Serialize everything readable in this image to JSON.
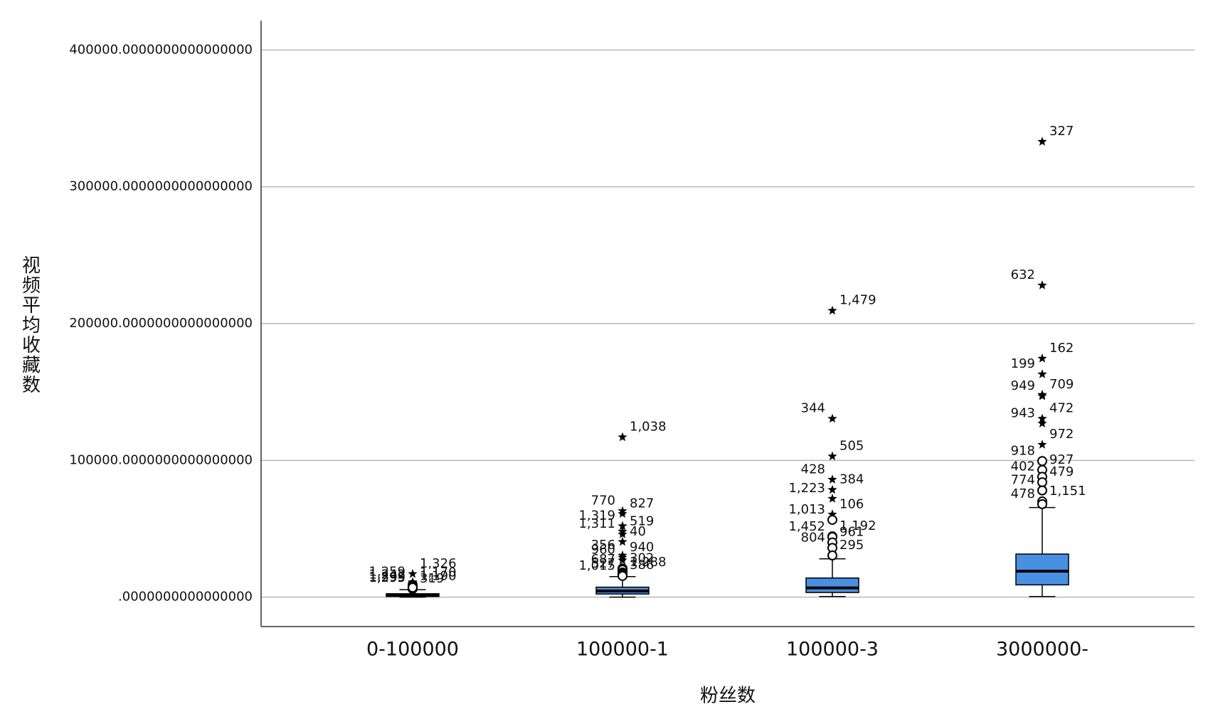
{
  "chart_data": {
    "type": "box",
    "y_label": "视频平均收藏数",
    "x_label": "粉丝数",
    "categories": [
      "0-100000",
      "100000-1",
      "100000-3",
      "3000000-"
    ],
    "color": "#4a90e2",
    "grid": true,
    "ylim": [
      -21500,
      421500
    ],
    "yticks": [
      {
        "value": 0,
        "label": ".0000000000000000"
      },
      {
        "value": 100000,
        "label": "100000.0000000000000000"
      },
      {
        "value": 200000,
        "label": "200000.0000000000000000"
      },
      {
        "value": 300000,
        "label": "300000.0000000000000000"
      },
      {
        "value": 400000,
        "label": "400000.0000000000000000"
      }
    ],
    "boxes": [
      {
        "whisker_low": 0,
        "q1": 500,
        "median": 1500,
        "q3": 2500,
        "whisker_high": 5500,
        "outliers": [
          {
            "value": 17000,
            "label": "1,326",
            "marker": "star"
          },
          {
            "value": 11000,
            "label": "1,259",
            "marker": "star"
          },
          {
            "value": 10500,
            "label": "1,170",
            "marker": "star"
          },
          {
            "value": 9000,
            "label": "1,242",
            "marker": "circle"
          },
          {
            "value": 8000,
            "label": "1,190",
            "marker": "circle"
          },
          {
            "value": 6500,
            "label": "1,295",
            "marker": "circle"
          },
          {
            "value": 6000,
            "label": "319",
            "marker": "circle"
          },
          {
            "value": 7000,
            "label": "1,399",
            "marker": "circle"
          }
        ]
      },
      {
        "whisker_low": 0,
        "q1": 2300,
        "median": 4500,
        "q3": 7300,
        "whisker_high": 15000,
        "outliers": [
          {
            "value": 117000,
            "label": "1,038",
            "marker": "star"
          },
          {
            "value": 63000,
            "label": "770",
            "marker": "star"
          },
          {
            "value": 61000,
            "label": "827",
            "marker": "star"
          },
          {
            "value": 52000,
            "label": "1,319",
            "marker": "star"
          },
          {
            "value": 48000,
            "label": "519",
            "marker": "star"
          },
          {
            "value": 46000,
            "label": "1,311",
            "marker": "star"
          },
          {
            "value": 40500,
            "label": "40",
            "marker": "star"
          },
          {
            "value": 30500,
            "label": "356",
            "marker": "star"
          },
          {
            "value": 29000,
            "label": "940",
            "marker": "star"
          },
          {
            "value": 27000,
            "label": "960",
            "marker": "star"
          },
          {
            "value": 21000,
            "label": "302",
            "marker": "circle"
          },
          {
            "value": 20000,
            "label": "687",
            "marker": "circle"
          },
          {
            "value": 18000,
            "label": "1,288",
            "marker": "circle"
          },
          {
            "value": 17000,
            "label": "527",
            "marker": "circle"
          },
          {
            "value": 16000,
            "label": "386",
            "marker": "circle"
          },
          {
            "value": 15500,
            "label": "1,015",
            "marker": "circle"
          }
        ]
      },
      {
        "whisker_low": 500,
        "q1": 3400,
        "median": 6800,
        "q3": 14000,
        "whisker_high": 28000,
        "outliers": [
          {
            "value": 209500,
            "label": "1,479",
            "marker": "star"
          },
          {
            "value": 130500,
            "label": "344",
            "marker": "star"
          },
          {
            "value": 103000,
            "label": "505",
            "marker": "star"
          },
          {
            "value": 86000,
            "label": "428",
            "marker": "star"
          },
          {
            "value": 78500,
            "label": "384",
            "marker": "star"
          },
          {
            "value": 72000,
            "label": "1,223",
            "marker": "star"
          },
          {
            "value": 60500,
            "label": "106",
            "marker": "star"
          },
          {
            "value": 56500,
            "label": "1,013",
            "marker": "circle"
          },
          {
            "value": 44500,
            "label": "1,192",
            "marker": "circle"
          },
          {
            "value": 44000,
            "label": "1,452",
            "marker": "circle"
          },
          {
            "value": 40000,
            "label": "961",
            "marker": "circle"
          },
          {
            "value": 36000,
            "label": "804",
            "marker": "circle"
          },
          {
            "value": 30500,
            "label": "295",
            "marker": "circle"
          }
        ]
      },
      {
        "whisker_low": 500,
        "q1": 9000,
        "median": 19000,
        "q3": 31500,
        "whisker_high": 65500,
        "outliers": [
          {
            "value": 333000,
            "label": "327",
            "marker": "star"
          },
          {
            "value": 228000,
            "label": "632",
            "marker": "star"
          },
          {
            "value": 174500,
            "label": "162",
            "marker": "star"
          },
          {
            "value": 163000,
            "label": "199",
            "marker": "star"
          },
          {
            "value": 148000,
            "label": "709",
            "marker": "star"
          },
          {
            "value": 147000,
            "label": "949",
            "marker": "star"
          },
          {
            "value": 130500,
            "label": "472",
            "marker": "star"
          },
          {
            "value": 127000,
            "label": "943",
            "marker": "star"
          },
          {
            "value": 111500,
            "label": "972",
            "marker": "star"
          },
          {
            "value": 99500,
            "label": "918",
            "marker": "circle"
          },
          {
            "value": 93000,
            "label": "927",
            "marker": "circle"
          },
          {
            "value": 88000,
            "label": "402",
            "marker": "circle"
          },
          {
            "value": 84000,
            "label": "479",
            "marker": "circle"
          },
          {
            "value": 78000,
            "label": "774",
            "marker": "circle"
          },
          {
            "value": 70000,
            "label": "1,151",
            "marker": "circle"
          },
          {
            "value": 68000,
            "label": "478",
            "marker": "circle"
          }
        ]
      }
    ]
  }
}
